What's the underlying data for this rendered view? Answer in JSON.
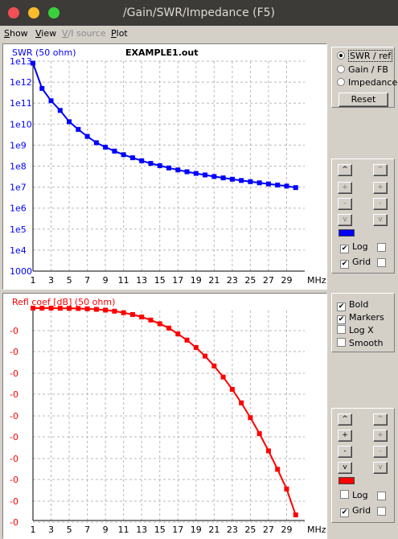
{
  "window": {
    "title": "/Gain/SWR/Impedance (F5)",
    "colors": {
      "titlebar": "#3c3b37",
      "close": "#f25056",
      "minimize": "#fabb2d",
      "maximize": "#39d03e"
    }
  },
  "menu": {
    "show": {
      "first": "S",
      "rest": "how"
    },
    "view": {
      "first": "V",
      "rest": "iew"
    },
    "vi_source": {
      "first": "V",
      "rest": "/I source"
    },
    "plot": {
      "first": "P",
      "rest": "lot"
    }
  },
  "top_plot": {
    "label": "SWR (50 ohm)",
    "filename": "EXAMPLE1.out",
    "color": "#0000ff"
  },
  "bottom_plot": {
    "label": "Refl coef [dB] (50 ohm)",
    "color": "#ff0000"
  },
  "mode_panel": {
    "swr_ref": "SWR / ref",
    "gain_fb": "Gain / FB",
    "impedance": "Impedance",
    "reset": "Reset",
    "selected": "swr_ref"
  },
  "controls_top": {
    "log_label": "Log",
    "grid_label": "Grid",
    "log_checked": true,
    "grid_checked": true,
    "swatch_color": "#0000ff"
  },
  "options_panel": {
    "bold": "Bold",
    "markers": "Markers",
    "logx": "Log X",
    "smooth": "Smooth",
    "bold_checked": true,
    "markers_checked": true
  },
  "controls_bottom": {
    "log_label": "Log",
    "grid_label": "Grid",
    "log_checked": false,
    "grid_checked": true,
    "swatch_color": "#ff0000"
  },
  "step_buttons": {
    "up2": "^",
    "up1": "+",
    "down1": "-",
    "down2": "v"
  },
  "chart_data": [
    {
      "type": "line",
      "ylabel": "SWR (50 ohm)",
      "xunit": "MHz",
      "x_ticks": [
        "1",
        "3",
        "5",
        "7",
        "9",
        "11",
        "13",
        "15",
        "17",
        "19",
        "21",
        "23",
        "25",
        "27",
        "29"
      ],
      "y_ticks": [
        "1e13",
        "1e12",
        "1e11",
        "1e10",
        "1e9",
        "1e8",
        "1e7",
        "1e6",
        "1e5",
        "1e4",
        "1000"
      ],
      "y_scale": "log",
      "ylim": [
        1000,
        10000000000000
      ],
      "xlim": [
        1,
        31
      ],
      "grid": true,
      "series": [
        {
          "x": [
            1,
            2,
            3,
            4,
            5,
            6,
            7,
            8,
            9,
            10,
            11,
            12,
            13,
            14,
            15,
            16,
            17,
            18,
            19,
            20,
            21,
            22,
            23,
            24,
            25,
            26,
            27,
            28,
            29,
            30
          ],
          "values": [
            8000000000000,
            500000000000,
            130000000000,
            45000000000,
            13000000000,
            5600000000,
            2600000000,
            1300000000,
            800000000,
            520000000,
            350000000,
            250000000,
            180000000,
            135000000,
            105000000,
            82000000,
            66000000,
            54000000,
            45000000,
            38000000,
            32000000,
            27500000,
            23800000,
            20700000,
            18200000,
            16000000,
            14200000,
            12600000,
            11200000,
            9500000
          ]
        }
      ]
    },
    {
      "type": "line",
      "ylabel": "Refl coef [dB] (50 ohm)",
      "xunit": "MHz",
      "x_ticks": [
        "1",
        "3",
        "5",
        "7",
        "9",
        "11",
        "13",
        "15",
        "17",
        "19",
        "21",
        "23",
        "25",
        "27",
        "29"
      ],
      "y_ticks": [
        "-0",
        "-0",
        "-0",
        "-0",
        "-0",
        "-0",
        "-0",
        "-0",
        "-0",
        "-0"
      ],
      "xlim": [
        1,
        31
      ],
      "grid": true,
      "series": [
        {
          "x": [
            1,
            2,
            3,
            4,
            5,
            6,
            7,
            8,
            9,
            10,
            11,
            12,
            13,
            14,
            15,
            16,
            17,
            18,
            19,
            20,
            21,
            22,
            23,
            24,
            25,
            26,
            27,
            28,
            29,
            30
          ],
          "values": [
            0.0,
            0.0,
            0.0,
            0.01,
            0.02,
            0.03,
            0.06,
            0.1,
            0.16,
            0.25,
            0.37,
            0.52,
            0.72,
            0.97,
            1.27,
            1.62,
            2.1,
            2.6,
            3.2,
            3.9,
            4.7,
            5.6,
            6.6,
            7.7,
            8.9,
            10.2,
            11.6,
            13.1,
            14.7,
            16.8
          ]
        }
      ]
    }
  ]
}
